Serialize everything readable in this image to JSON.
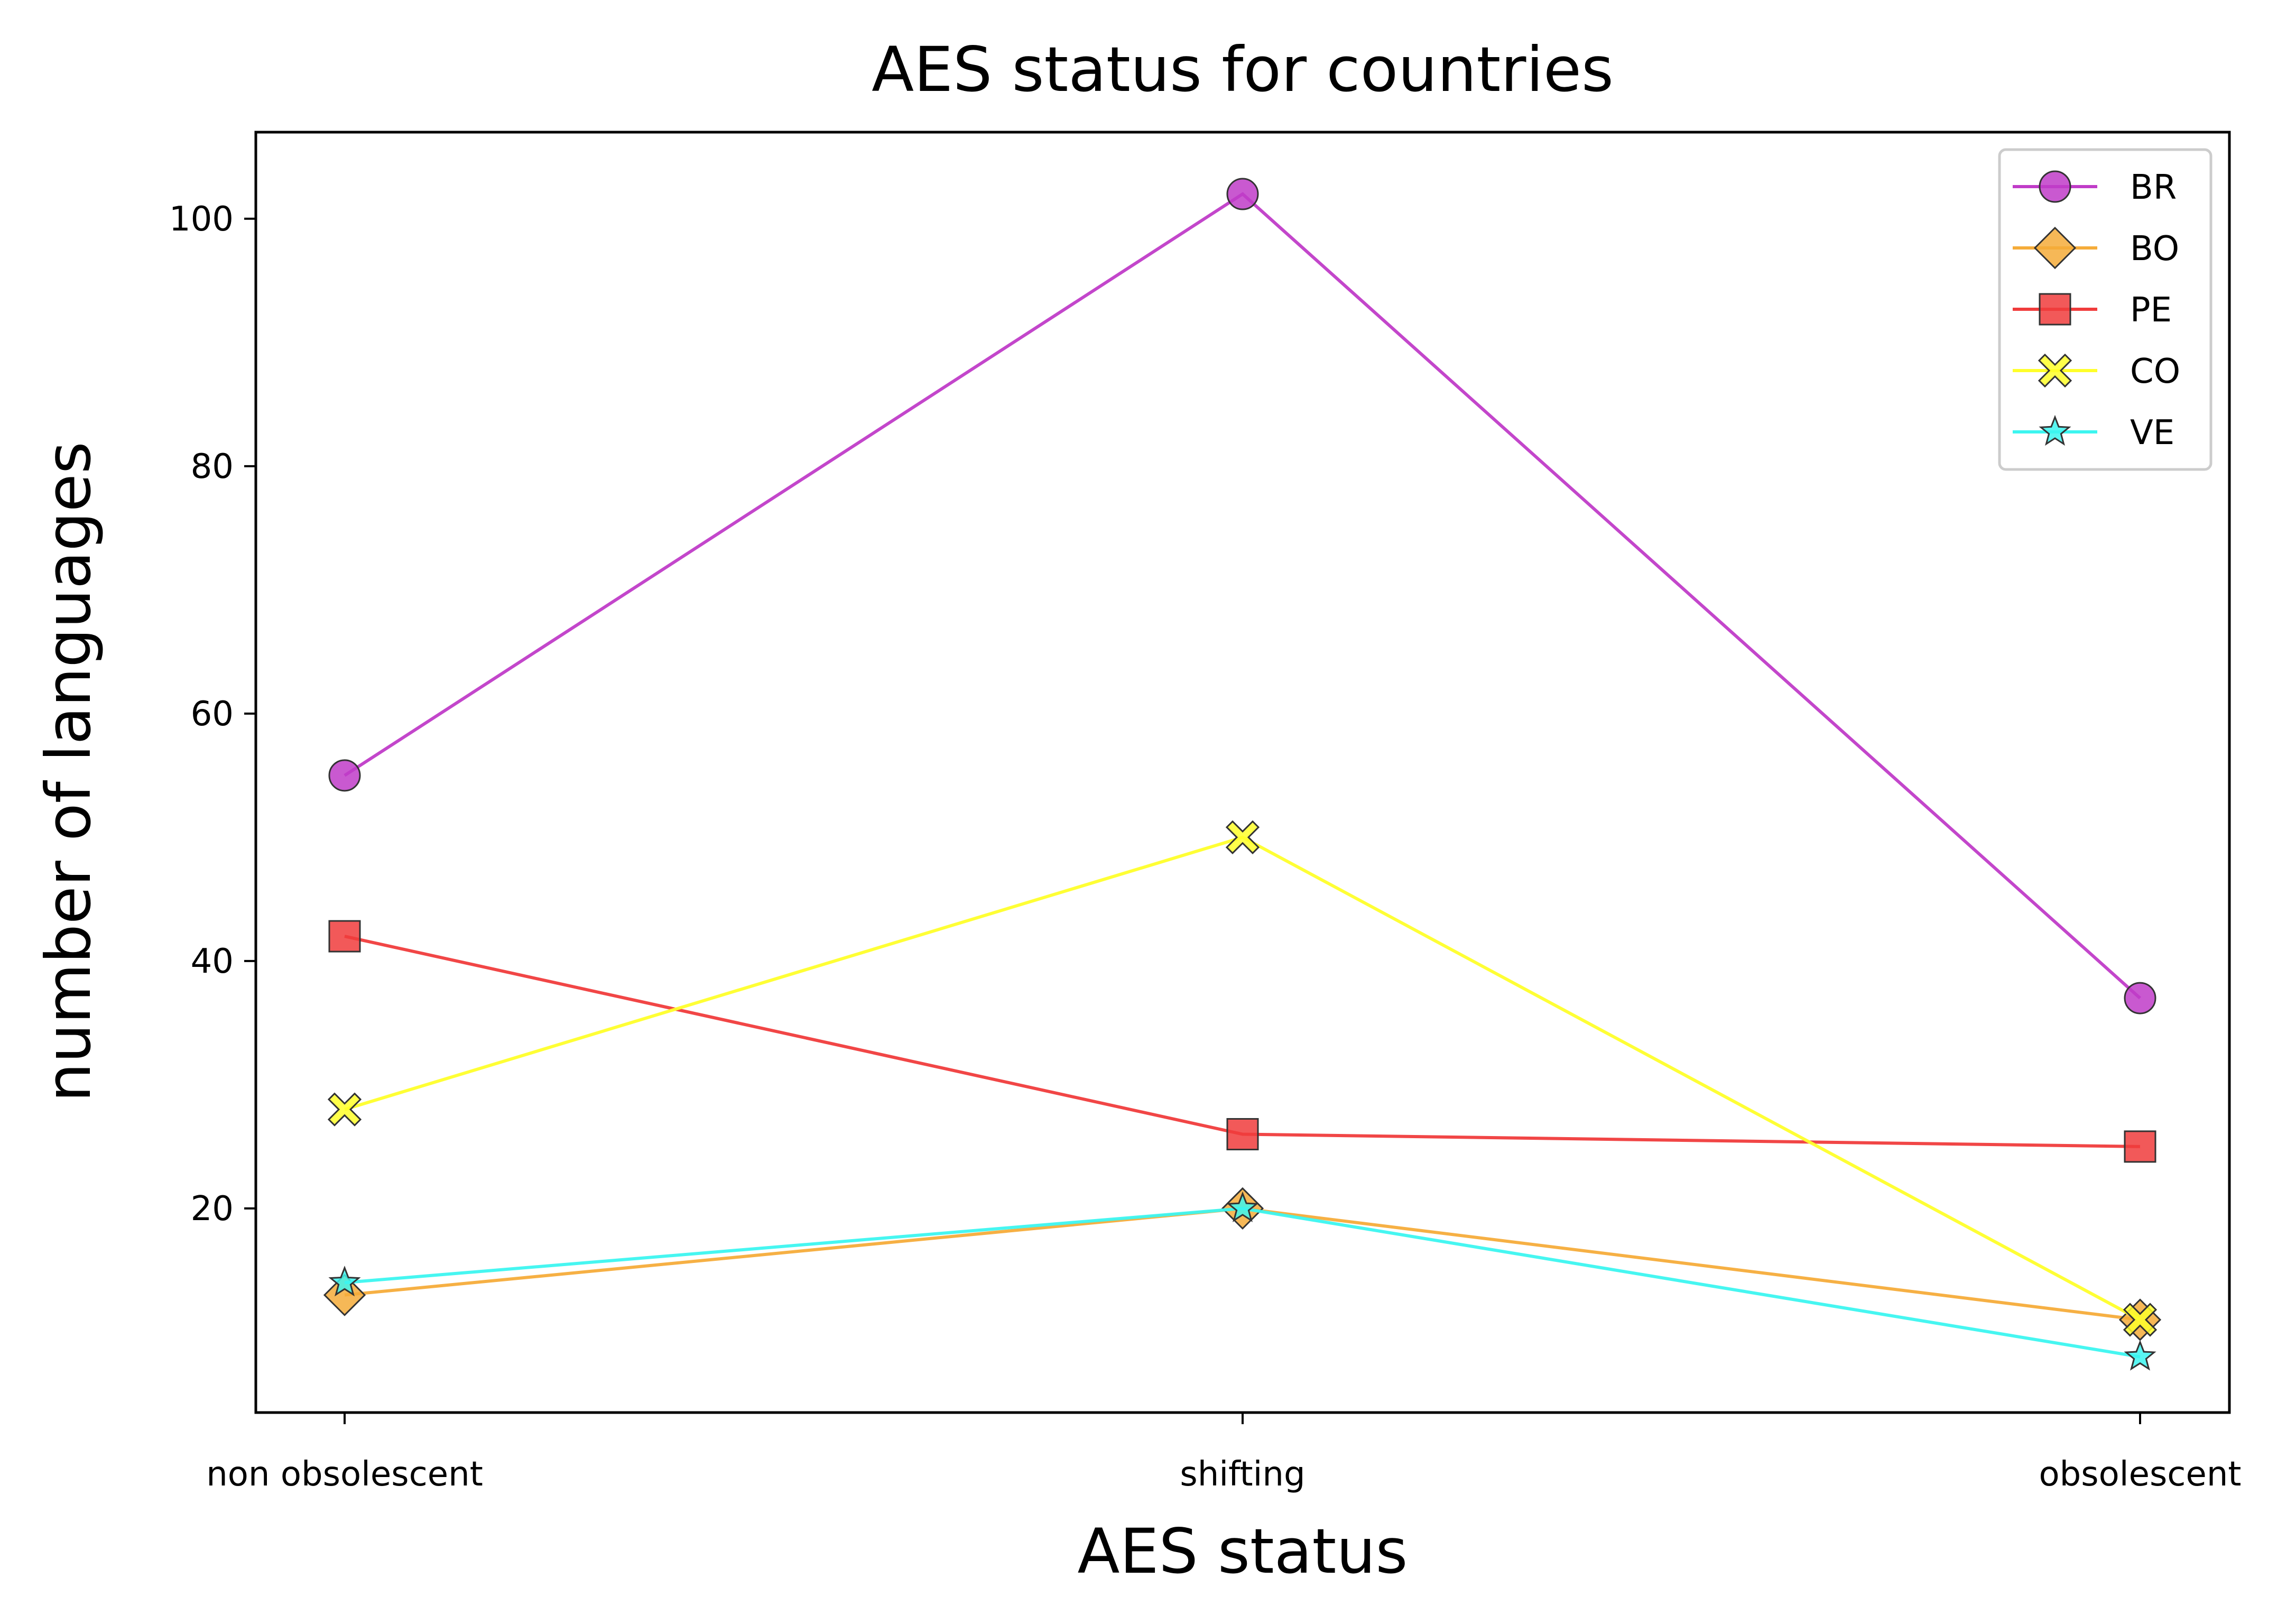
{
  "chart_data": {
    "type": "line",
    "title": "AES status for countries",
    "xlabel": "AES status",
    "ylabel": "number of languages",
    "categories": [
      "non obsolescent",
      "shifting",
      "obsolescent"
    ],
    "ylim": [
      3.5,
      107
    ],
    "yticks": [
      20,
      40,
      60,
      80,
      100
    ],
    "grid": false,
    "legend_position": "top-right",
    "series": [
      {
        "name": "BR",
        "values": [
          55,
          102,
          37
        ],
        "color": "#c03cc8",
        "marker": "circle"
      },
      {
        "name": "BO",
        "values": [
          13,
          20,
          11
        ],
        "color": "#f5ac3a",
        "marker": "diamond"
      },
      {
        "name": "PE",
        "values": [
          42,
          26,
          25
        ],
        "color": "#f03c3c",
        "marker": "square"
      },
      {
        "name": "CO",
        "values": [
          28,
          50,
          11
        ],
        "color": "#ffff2a",
        "marker": "x"
      },
      {
        "name": "VE",
        "values": [
          14,
          20,
          8
        ],
        "color": "#3cf5f0",
        "marker": "star"
      }
    ]
  }
}
